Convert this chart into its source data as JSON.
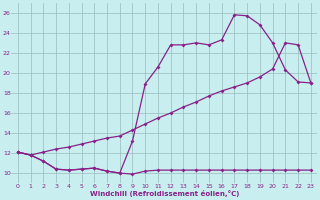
{
  "xlabel": "Windchill (Refroidissement éolien,°C)",
  "bg_color": "#c8eef0",
  "line_color": "#882288",
  "grid_color": "#99bbbb",
  "xlim": [
    -0.5,
    23.5
  ],
  "ylim": [
    9.0,
    27.0
  ],
  "yticks": [
    10,
    12,
    14,
    16,
    18,
    20,
    22,
    24,
    26
  ],
  "xticks": [
    0,
    1,
    2,
    3,
    4,
    5,
    6,
    7,
    8,
    9,
    10,
    11,
    12,
    13,
    14,
    15,
    16,
    17,
    18,
    19,
    20,
    21,
    22,
    23
  ],
  "line1_x": [
    0,
    1,
    2,
    3,
    4,
    5,
    6,
    7,
    8,
    9,
    10,
    11,
    12,
    13,
    14,
    15,
    16,
    17,
    18,
    19,
    20,
    21,
    22,
    23
  ],
  "line1_y": [
    12.1,
    11.8,
    11.2,
    10.4,
    10.3,
    10.4,
    10.5,
    10.2,
    10.0,
    9.9,
    10.2,
    10.3,
    10.3,
    10.3,
    10.3,
    10.3,
    10.3,
    10.3,
    10.3,
    10.3,
    10.3,
    10.3,
    10.3,
    10.3
  ],
  "line2_x": [
    0,
    1,
    2,
    3,
    4,
    5,
    6,
    7,
    8,
    9,
    10,
    11,
    12,
    13,
    14,
    15,
    16,
    17,
    18,
    19,
    20,
    21,
    22,
    23
  ],
  "line2_y": [
    12.1,
    11.8,
    11.2,
    10.4,
    10.3,
    10.4,
    10.5,
    10.2,
    10.0,
    13.2,
    18.9,
    20.6,
    22.8,
    22.8,
    23.0,
    22.8,
    23.3,
    25.8,
    25.7,
    24.8,
    23.0,
    20.3,
    19.1,
    19.0
  ],
  "line3_x": [
    0,
    1,
    2,
    3,
    4,
    5,
    6,
    7,
    8,
    9,
    10,
    11,
    12,
    13,
    14,
    15,
    16,
    17,
    18,
    19,
    20,
    21,
    22,
    23
  ],
  "line3_y": [
    12.1,
    11.8,
    12.1,
    12.4,
    12.6,
    12.9,
    13.2,
    13.5,
    13.7,
    14.3,
    14.9,
    15.5,
    16.0,
    16.6,
    17.1,
    17.7,
    18.2,
    18.6,
    19.0,
    19.6,
    20.4,
    23.0,
    22.8,
    19.0
  ],
  "marker": "D",
  "marker_size": 2.0,
  "linewidth": 0.9
}
